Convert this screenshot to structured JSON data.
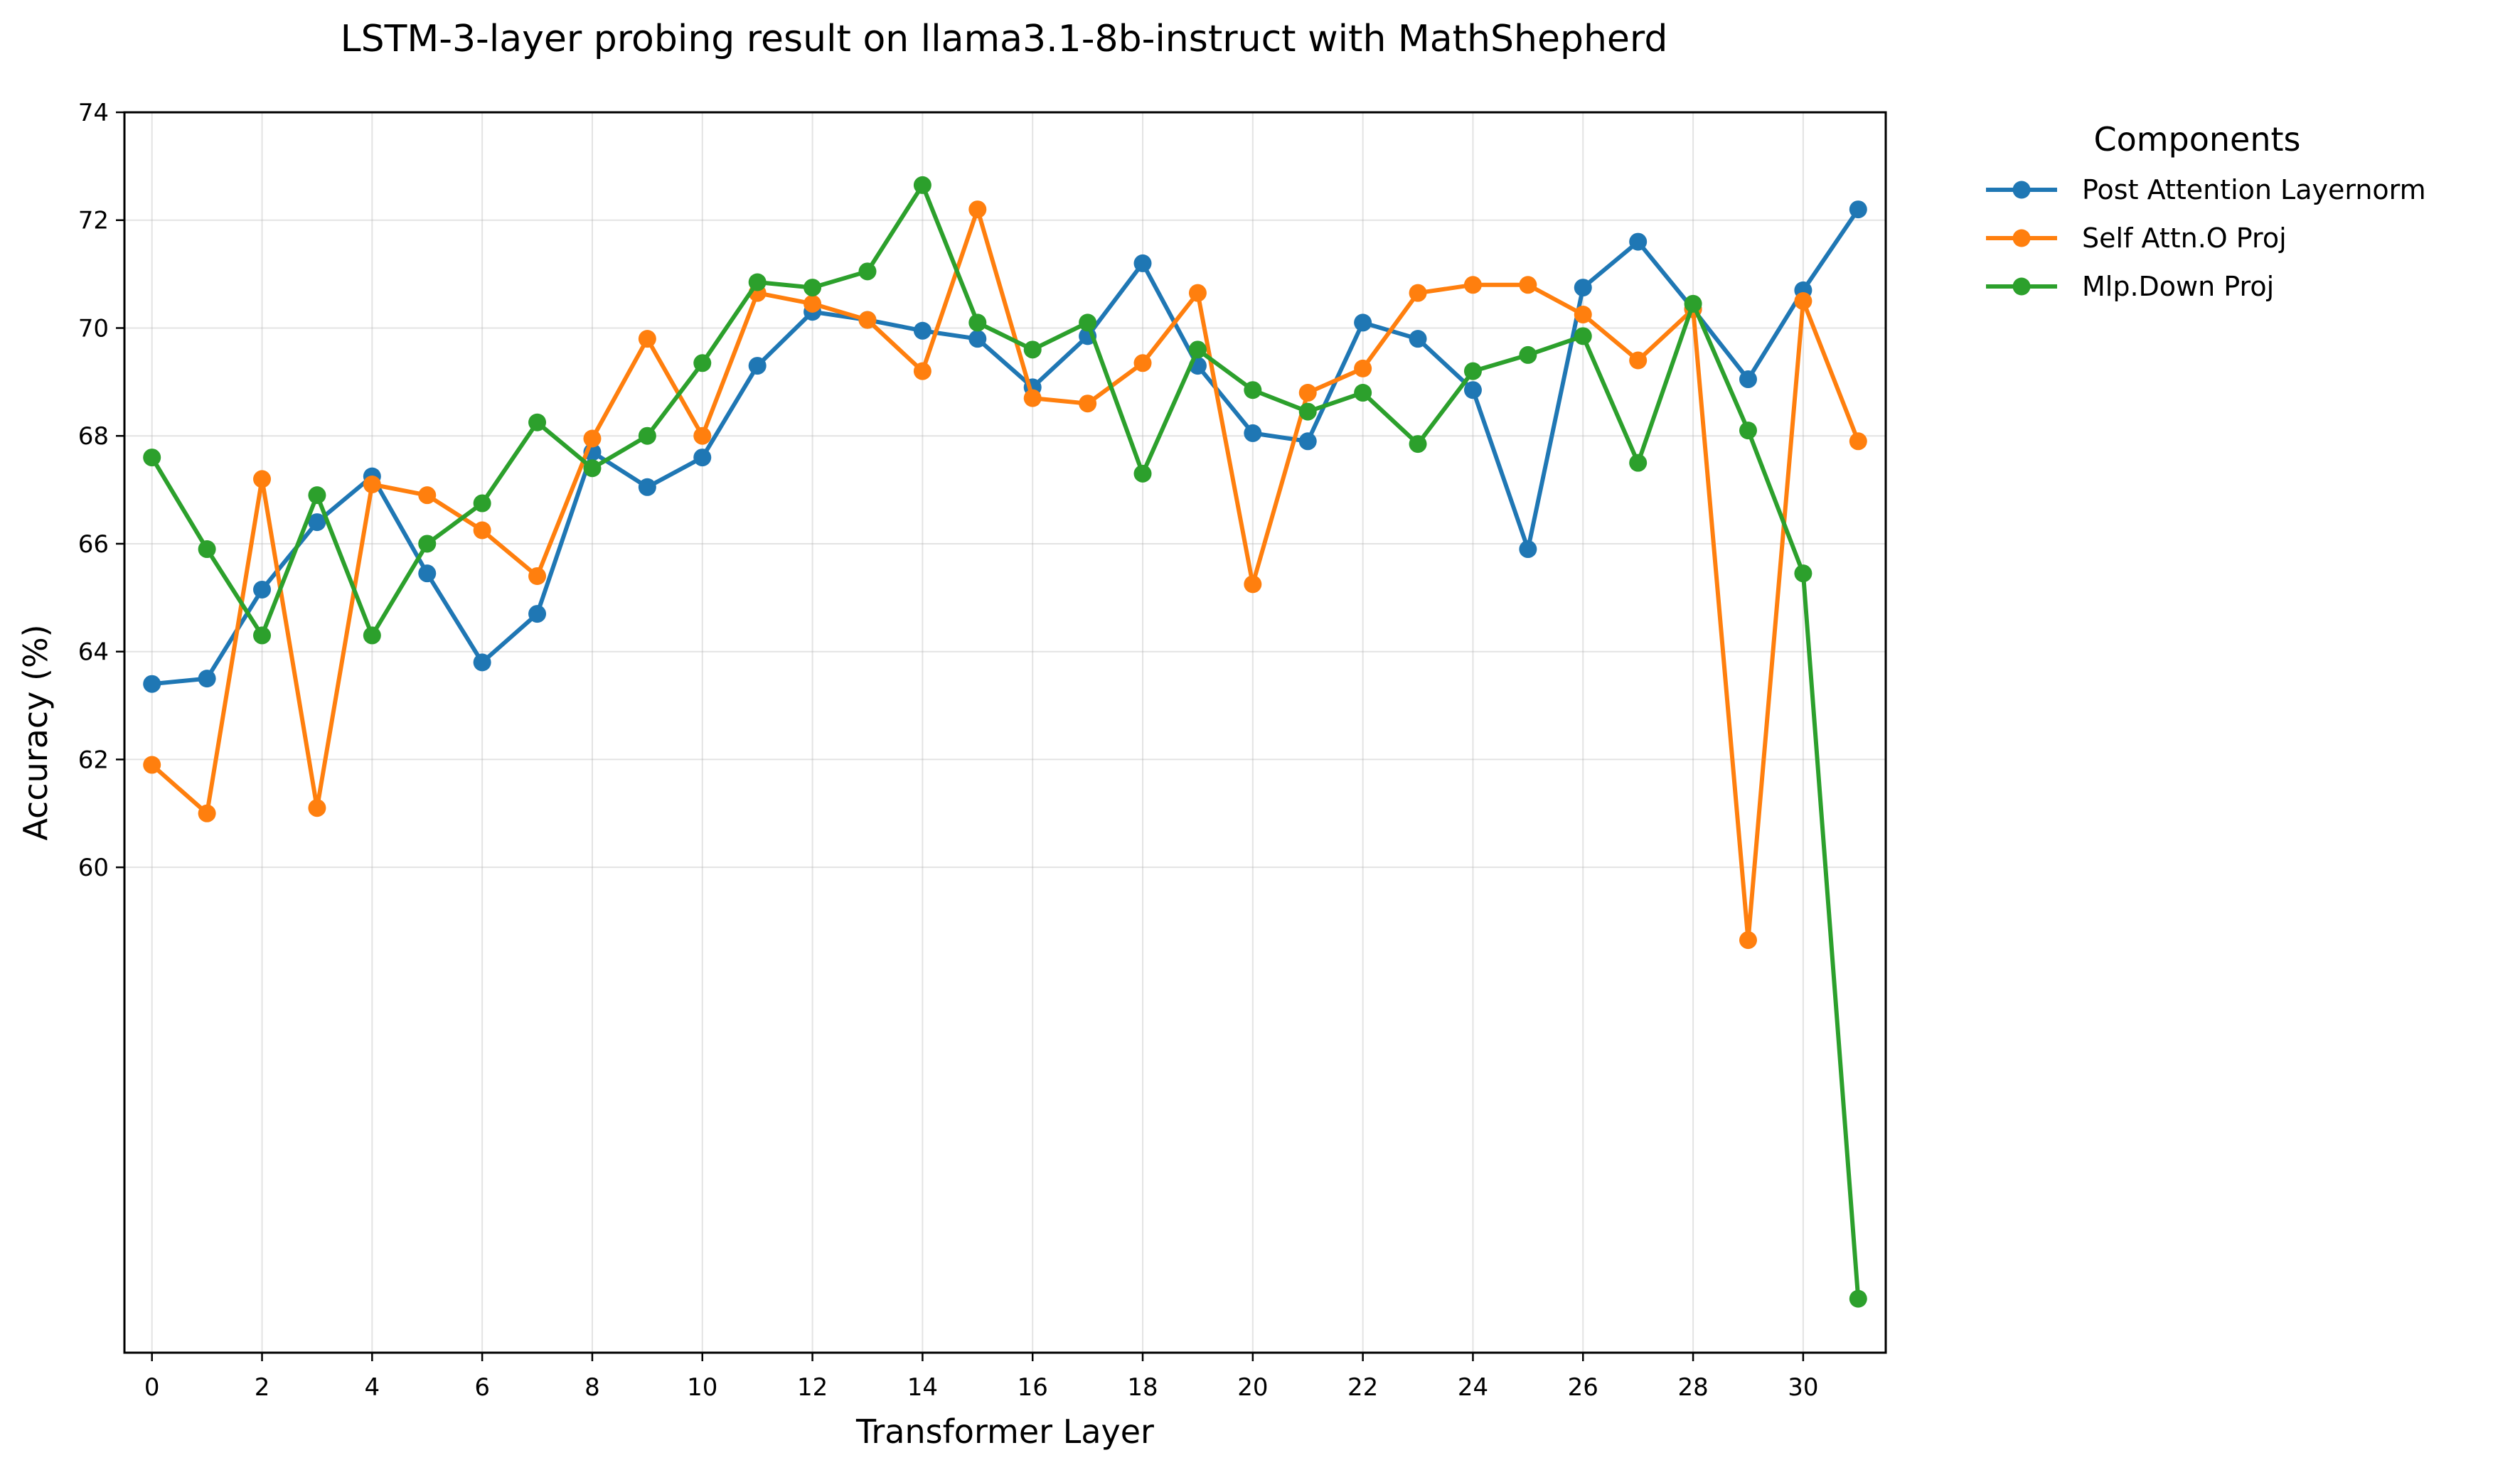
{
  "chart_data": {
    "type": "line",
    "title": "LSTM-3-layer probing result on llama3.1-8b-instruct with MathShepherd",
    "xlabel": "Transformer Layer",
    "ylabel": "Accuracy (%)",
    "xlim": [
      -0.5,
      31.5
    ],
    "ylim": [
      51.0,
      74.0
    ],
    "xticks": [
      0,
      2,
      4,
      6,
      8,
      10,
      12,
      14,
      16,
      18,
      20,
      22,
      24,
      26,
      28,
      30
    ],
    "yticks": [
      60,
      62,
      64,
      66,
      68,
      70,
      72,
      74
    ],
    "grid": true,
    "legend": {
      "title": "Components",
      "placement": "outside-top-right"
    },
    "x": [
      0,
      1,
      2,
      3,
      4,
      5,
      6,
      7,
      8,
      9,
      10,
      11,
      12,
      13,
      14,
      15,
      16,
      17,
      18,
      19,
      20,
      21,
      22,
      23,
      24,
      25,
      26,
      27,
      28,
      29,
      30,
      31
    ],
    "series": [
      {
        "name": "Post Attention Layernorm",
        "color": "#1f77b4",
        "values": [
          63.4,
          63.5,
          65.15,
          66.4,
          67.25,
          65.45,
          63.8,
          64.7,
          67.7,
          67.05,
          67.6,
          69.3,
          70.3,
          70.15,
          69.95,
          69.8,
          68.9,
          69.85,
          71.2,
          69.3,
          68.05,
          67.9,
          70.1,
          69.8,
          68.85,
          65.9,
          70.75,
          71.6,
          70.35,
          69.05,
          70.7,
          72.2
        ]
      },
      {
        "name": "Self Attn.O Proj",
        "color": "#ff7f0e",
        "values": [
          61.9,
          61.0,
          67.2,
          61.1,
          67.1,
          66.9,
          66.25,
          65.4,
          67.95,
          69.8,
          68.0,
          70.65,
          70.45,
          70.15,
          69.2,
          72.2,
          68.7,
          68.6,
          69.35,
          70.65,
          65.25,
          68.8,
          69.25,
          70.65,
          70.8,
          70.8,
          70.25,
          69.4,
          70.35,
          58.65,
          70.5,
          67.9
        ]
      },
      {
        "name": "Mlp.Down Proj",
        "color": "#2ca02c",
        "values": [
          67.6,
          65.9,
          64.3,
          66.9,
          64.3,
          66.0,
          66.75,
          68.25,
          67.4,
          68.0,
          69.35,
          70.85,
          70.75,
          71.05,
          72.65,
          70.1,
          69.6,
          70.1,
          67.3,
          69.6,
          68.85,
          68.45,
          68.8,
          67.85,
          69.2,
          69.5,
          69.85,
          67.5,
          70.45,
          68.1,
          65.45,
          52.0
        ]
      }
    ]
  }
}
